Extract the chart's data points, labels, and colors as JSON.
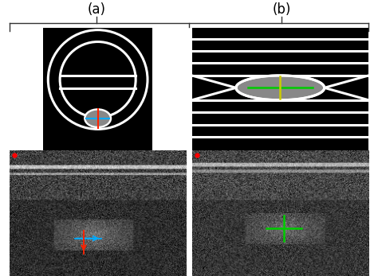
{
  "fig_width": 4.74,
  "fig_height": 3.47,
  "dpi": 100,
  "bg_color": "#ffffff",
  "label_a": "(a)",
  "label_b": "(b)",
  "label_fontsize": 12,
  "panel_bg": "#000000",
  "diagram_line_color": "#ffffff",
  "crosshair_blue": "#00aaff",
  "crosshair_red": "#ff2200",
  "crosshair_green": "#00cc00",
  "crosshair_yellow": "#cccc00",
  "papilla_gray": "#888888",
  "bracket_color": "#333333",
  "bracket_lw": 1.0
}
